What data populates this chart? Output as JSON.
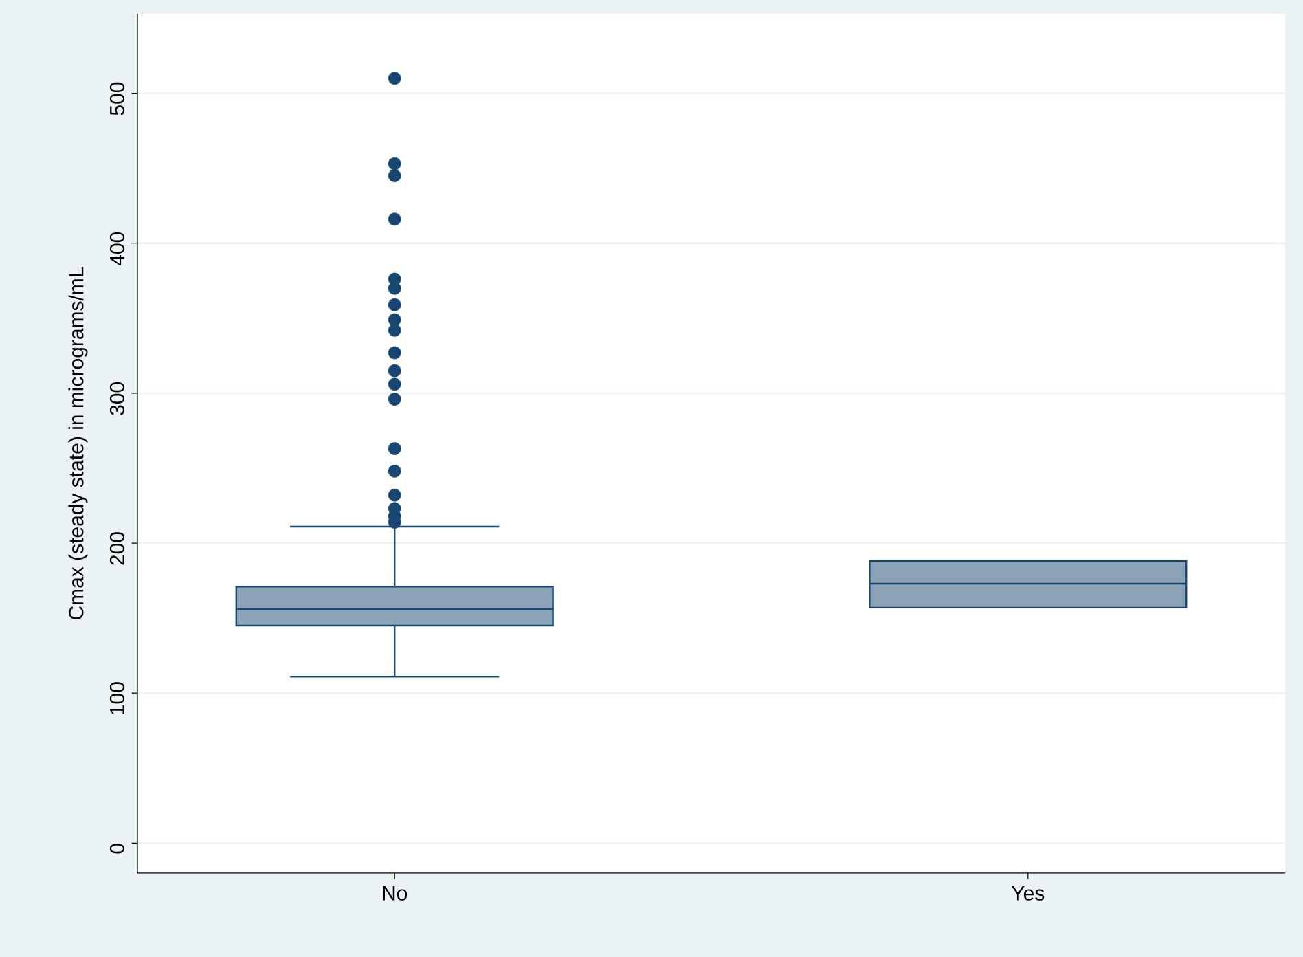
{
  "chart_data": {
    "type": "box",
    "ylabel": "Cmax (steady state) in micrograms/mL",
    "categories": [
      "No",
      "Yes"
    ],
    "boxes": [
      {
        "low": 111,
        "q1": 145,
        "median": 156,
        "q3": 171,
        "high": 211,
        "outliers": [
          510,
          453,
          445,
          416,
          376,
          370,
          359,
          349,
          342,
          327,
          315,
          306,
          296,
          263,
          248,
          232,
          223,
          218,
          214
        ]
      },
      {
        "low": 157,
        "q1": 157,
        "median": 173,
        "q3": 188,
        "high": 188
      }
    ],
    "color": "#1a476f",
    "marker": "circle",
    "ylim": [
      -20,
      553
    ],
    "yticks": [
      0,
      100,
      200,
      300,
      400,
      500
    ],
    "grid": "y"
  }
}
